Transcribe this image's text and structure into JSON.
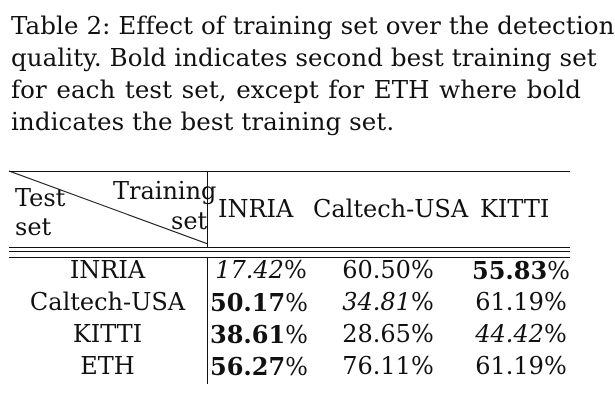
{
  "caption": {
    "lines": [
      "Table 2: Effect of training set over the detection",
      "quality. Bold indicates second best training set",
      "for each test set, except for ETH where bold",
      "indicates the best training set."
    ]
  },
  "table": {
    "corner_test_label": [
      "Test",
      "set"
    ],
    "corner_training_label": [
      "Training",
      "set"
    ],
    "columns": [
      "INRIA",
      "Caltech-USA",
      "KITTI"
    ],
    "rows": [
      {
        "label": "INRIA",
        "cells": [
          {
            "value": "17.42",
            "pct": "%",
            "style": "italic"
          },
          {
            "value": "60.50",
            "pct": "%",
            "style": "normal"
          },
          {
            "value": "55.83",
            "pct": "%",
            "style": "bold"
          }
        ]
      },
      {
        "label": "Caltech-USA",
        "cells": [
          {
            "value": "50.17",
            "pct": "%",
            "style": "bold"
          },
          {
            "value": "34.81",
            "pct": "%",
            "style": "italic"
          },
          {
            "value": "61.19",
            "pct": "%",
            "style": "normal"
          }
        ]
      },
      {
        "label": "KITTI",
        "cells": [
          {
            "value": "38.61",
            "pct": "%",
            "style": "bold"
          },
          {
            "value": "28.65",
            "pct": "%",
            "style": "normal"
          },
          {
            "value": "44.42",
            "pct": "%",
            "style": "italic"
          }
        ]
      },
      {
        "label": "ETH",
        "cells": [
          {
            "value": "56.27",
            "pct": "%",
            "style": "bold"
          },
          {
            "value": "76.11",
            "pct": "%",
            "style": "normal"
          },
          {
            "value": "61.19",
            "pct": "%",
            "style": "normal"
          }
        ]
      }
    ]
  }
}
